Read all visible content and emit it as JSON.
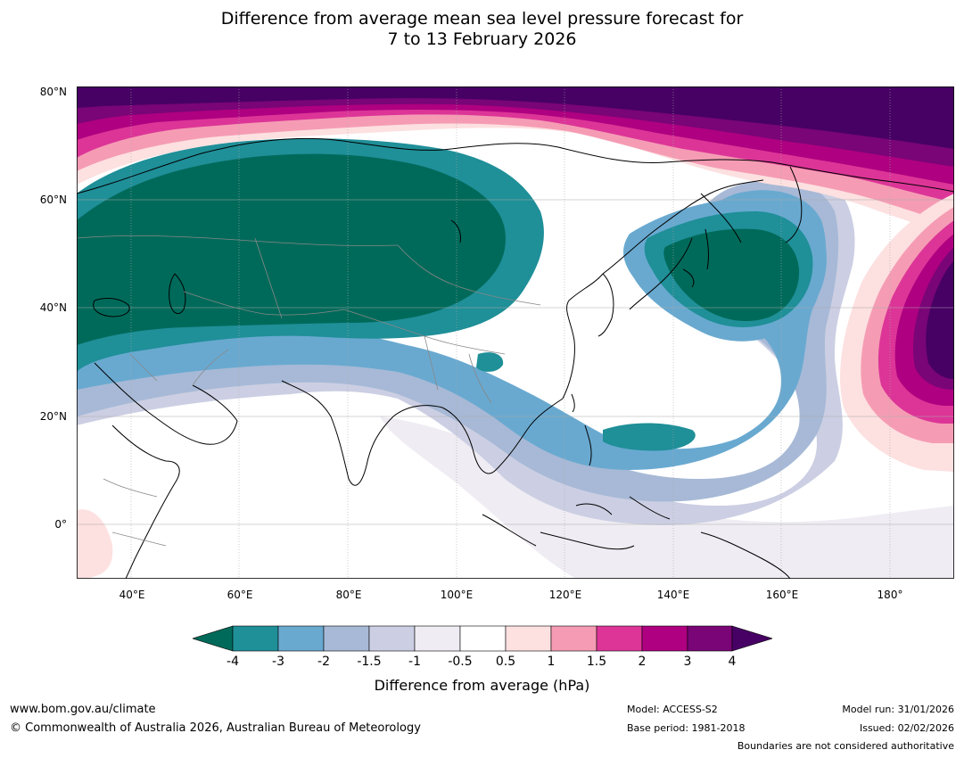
{
  "title": {
    "line1": "Difference from average mean sea level pressure forecast for",
    "line2": "7 to 13 February 2026"
  },
  "map": {
    "lat_labels": [
      "80°N",
      "60°N",
      "40°N",
      "20°N",
      "0°"
    ],
    "lon_labels": [
      "40°E",
      "60°E",
      "80°E",
      "100°E",
      "120°E",
      "140°E",
      "160°E",
      "180°"
    ],
    "colors": {
      "c_lt_m4": "#006a5a",
      "c_m4_m3": "#1f8f98",
      "c_m3_m2": "#69a9d0",
      "c_m2_m15": "#a7b9d6",
      "c_m15_m1": "#cccfe3",
      "c_m1_m05": "#efecf3",
      "c_m05_05": "#ffffff",
      "c_05_1": "#fde0e0",
      "c_1_15": "#f59cb4",
      "c_15_2": "#dc3597",
      "c_2_3": "#ae0080",
      "c_3_4": "#790577",
      "c_gt_4": "#470064",
      "land_line": "#000000",
      "border_line": "#888888",
      "grid_line": "#aaaaaa"
    }
  },
  "colorbar": {
    "labels": [
      "-4",
      "-3",
      "-2",
      "-1.5",
      "-1",
      "-0.5",
      "0.5",
      "1",
      "1.5",
      "2",
      "3",
      "4"
    ],
    "title": "Difference from average (hPa)"
  },
  "footer": {
    "url": "www.bom.gov.au/climate",
    "copyright": "© Commonwealth of Australia 2026, Australian Bureau of Meteorology",
    "model": "Model: ACCESS-S2",
    "base_period": "Base period: 1981-2018",
    "model_run": "Model run: 31/01/2026",
    "issued": "Issued: 02/02/2026",
    "boundaries": "Boundaries are not considered authoritative"
  }
}
